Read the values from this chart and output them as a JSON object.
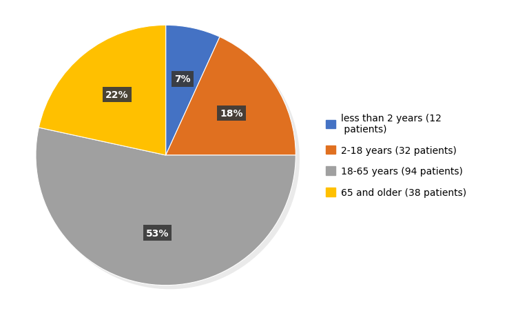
{
  "values": [
    12,
    32,
    94,
    38
  ],
  "percentages": [
    "7%",
    "18%",
    "53%",
    "22%"
  ],
  "colors": [
    "#4472C4",
    "#E07020",
    "#A0A0A0",
    "#FFC000"
  ],
  "legend_labels": [
    "less than 2 years (12\n patients)",
    "2-18 years (32 patients)",
    "18-65 years (94 patients)",
    "65 and older (38 patients)"
  ],
  "background_color": "#FFFFFF",
  "label_bg_color": "#3A3A3A",
  "label_text_color": "#FFFFFF",
  "label_fontsize": 10,
  "legend_fontsize": 10,
  "startangle": 90
}
